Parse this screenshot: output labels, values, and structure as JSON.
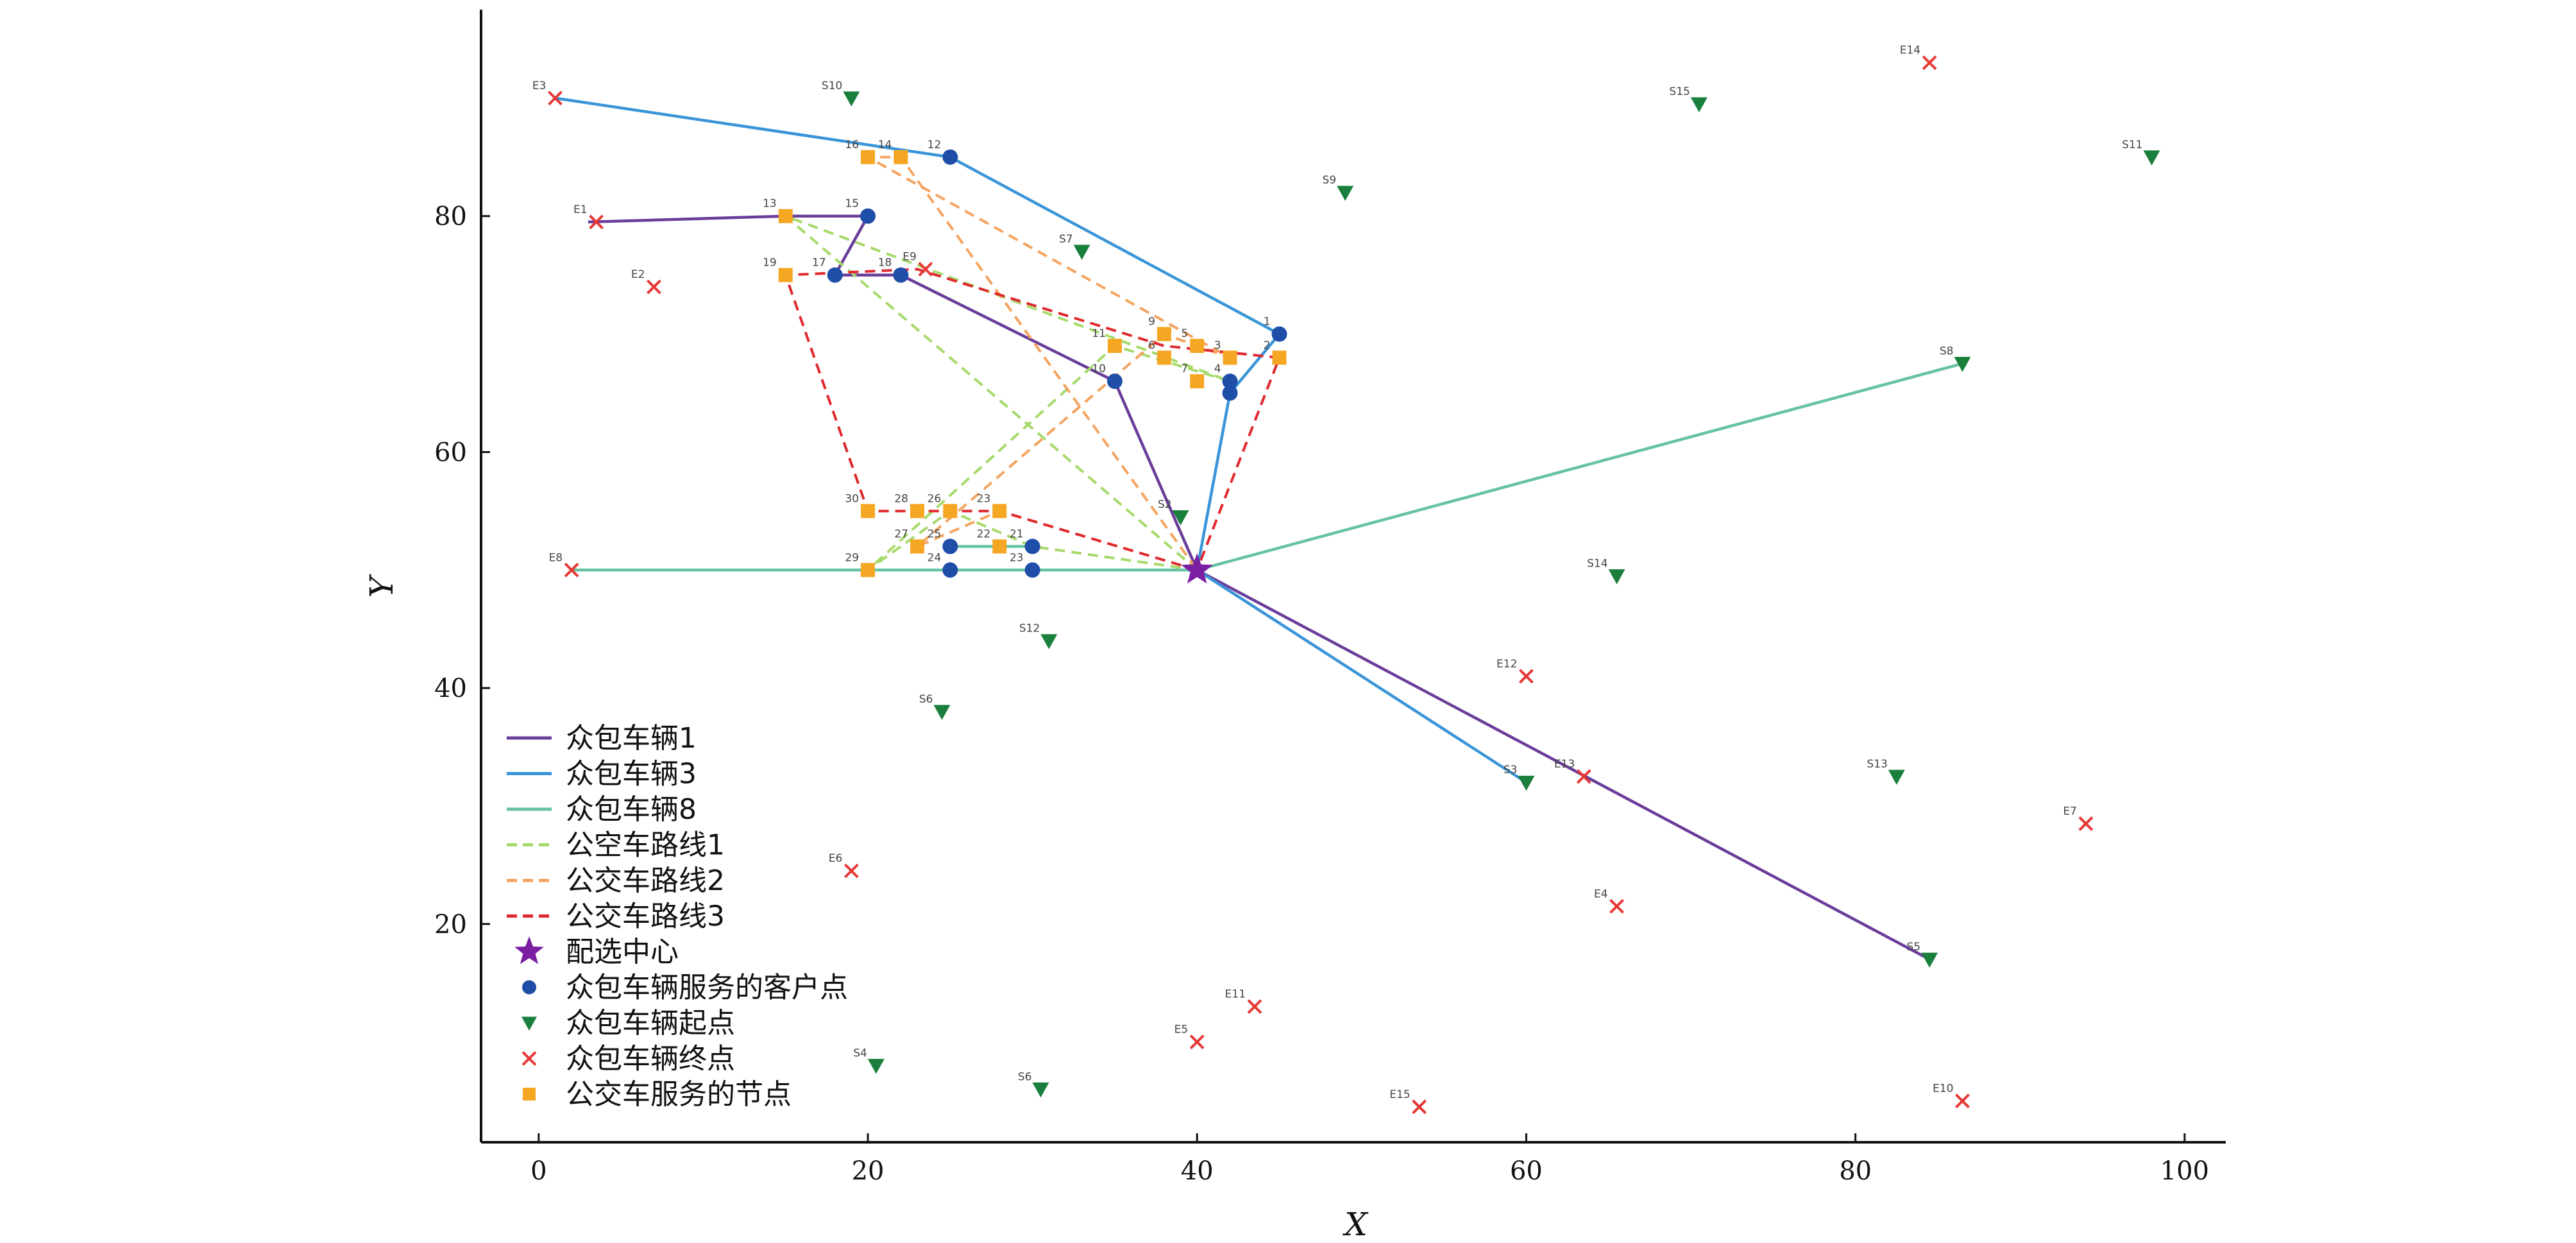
{
  "chart_data": {
    "type": "scatter",
    "xlabel": "X",
    "ylabel": "Y",
    "xlim": [
      -3.5,
      102.5
    ],
    "ylim": [
      1.5,
      97.5
    ],
    "xticks": [
      0,
      20,
      40,
      60,
      80,
      100
    ],
    "yticks": [
      20,
      40,
      60,
      80
    ],
    "grid": false,
    "legend_position": "bottom-left",
    "colors": {
      "vehicle1": "#6a3d9a",
      "vehicle3": "#3a94d8",
      "vehicle8": "#66c2a5",
      "bus1": "#a6d96a",
      "bus2": "#f4a460",
      "bus3": "#e0282e",
      "center": "#7b1fa2",
      "customer": "#1f4ea8",
      "start": "#1a7f3c",
      "end": "#e53935",
      "bus_node": "#f5a623"
    },
    "center": {
      "x": 40,
      "y": 50
    },
    "routes": [
      {
        "key": "vehicle1",
        "style": "solid",
        "points": [
          [
            40,
            50
          ],
          [
            35,
            66
          ],
          [
            22,
            75
          ],
          [
            18,
            75
          ],
          [
            20,
            80
          ],
          [
            15,
            80
          ],
          [
            3,
            79.5
          ]
        ]
      },
      {
        "key": "vehicle1",
        "style": "solid",
        "points": [
          [
            40,
            50
          ],
          [
            84.5,
            17
          ]
        ]
      },
      {
        "key": "vehicle3",
        "style": "solid",
        "points": [
          [
            40,
            50
          ],
          [
            42,
            65
          ],
          [
            45,
            70
          ],
          [
            25,
            85
          ],
          [
            1,
            90
          ]
        ]
      },
      {
        "key": "vehicle3",
        "style": "solid",
        "points": [
          [
            40,
            50
          ],
          [
            60,
            32
          ]
        ]
      },
      {
        "key": "vehicle8",
        "style": "solid",
        "points": [
          [
            40,
            50
          ],
          [
            86.5,
            67.5
          ]
        ]
      },
      {
        "key": "vehicle8",
        "style": "solid",
        "points": [
          [
            40,
            50
          ],
          [
            30,
            50
          ],
          [
            25,
            50
          ],
          [
            20,
            50
          ],
          [
            2,
            50
          ]
        ]
      },
      {
        "key": "vehicle8",
        "style": "solid",
        "points": [
          [
            30,
            52
          ],
          [
            25,
            52
          ]
        ]
      },
      {
        "key": "bus1",
        "style": "dashed",
        "points": [
          [
            40,
            50
          ],
          [
            30,
            52
          ],
          [
            25,
            55
          ],
          [
            20,
            50
          ],
          [
            35,
            69
          ],
          [
            42,
            66
          ],
          [
            15,
            80
          ],
          [
            40,
            50
          ]
        ]
      },
      {
        "key": "bus2",
        "style": "dashed",
        "points": [
          [
            40,
            50
          ],
          [
            28,
            55
          ],
          [
            23,
            52
          ],
          [
            38,
            70
          ],
          [
            42,
            68
          ],
          [
            20,
            85
          ],
          [
            22,
            85
          ],
          [
            40,
            50
          ]
        ]
      },
      {
        "key": "bus3",
        "style": "dashed",
        "points": [
          [
            40,
            50
          ],
          [
            28,
            55
          ],
          [
            20,
            55
          ],
          [
            15,
            75
          ],
          [
            23,
            75.5
          ],
          [
            38,
            69
          ],
          [
            45,
            68
          ],
          [
            40,
            50
          ]
        ]
      }
    ],
    "customers": [
      {
        "label": "1",
        "x": 45,
        "y": 70
      },
      {
        "label": "4",
        "x": 42,
        "y": 66
      },
      {
        "label": "",
        "x": 42,
        "y": 65
      },
      {
        "label": "10",
        "x": 35,
        "y": 66
      },
      {
        "label": "12",
        "x": 25,
        "y": 85
      },
      {
        "label": "15",
        "x": 20,
        "y": 80
      },
      {
        "label": "17",
        "x": 18,
        "y": 75
      },
      {
        "label": "18",
        "x": 22,
        "y": 75
      },
      {
        "label": "25",
        "x": 25,
        "y": 52
      },
      {
        "label": "21",
        "x": 30,
        "y": 52
      },
      {
        "label": "24",
        "x": 25,
        "y": 50
      },
      {
        "label": "23",
        "x": 30,
        "y": 50
      }
    ],
    "bus_nodes": [
      {
        "label": "16",
        "x": 20,
        "y": 85
      },
      {
        "label": "14",
        "x": 22,
        "y": 85
      },
      {
        "label": "13",
        "x": 15,
        "y": 80
      },
      {
        "label": "19",
        "x": 15,
        "y": 75
      },
      {
        "label": "11",
        "x": 35,
        "y": 69
      },
      {
        "label": "9",
        "x": 38,
        "y": 70
      },
      {
        "label": "6",
        "x": 38,
        "y": 68
      },
      {
        "label": "5",
        "x": 40,
        "y": 69
      },
      {
        "label": "3",
        "x": 42,
        "y": 68
      },
      {
        "label": "2",
        "x": 45,
        "y": 68
      },
      {
        "label": "7",
        "x": 40,
        "y": 66
      },
      {
        "label": "30",
        "x": 20,
        "y": 55
      },
      {
        "label": "28",
        "x": 23,
        "y": 55
      },
      {
        "label": "26",
        "x": 25,
        "y": 55
      },
      {
        "label": "23",
        "x": 28,
        "y": 55
      },
      {
        "label": "27",
        "x": 23,
        "y": 52
      },
      {
        "label": "22",
        "x": 28,
        "y": 52
      },
      {
        "label": "29",
        "x": 20,
        "y": 50
      }
    ],
    "starts": [
      {
        "label": "S10",
        "x": 19,
        "y": 90
      },
      {
        "label": "S15",
        "x": 70.5,
        "y": 89.5
      },
      {
        "label": "S11",
        "x": 98,
        "y": 85
      },
      {
        "label": "S9",
        "x": 49,
        "y": 82
      },
      {
        "label": "S7",
        "x": 33,
        "y": 77
      },
      {
        "label": "S8",
        "x": 86.5,
        "y": 67.5
      },
      {
        "label": "S2",
        "x": 39,
        "y": 54.5
      },
      {
        "label": "S14",
        "x": 65.5,
        "y": 49.5
      },
      {
        "label": "S12",
        "x": 31,
        "y": 44
      },
      {
        "label": "S6",
        "x": 24.5,
        "y": 38
      },
      {
        "label": "S3",
        "x": 60,
        "y": 32
      },
      {
        "label": "S13",
        "x": 82.5,
        "y": 32.5
      },
      {
        "label": "S5",
        "x": 84.5,
        "y": 17
      },
      {
        "label": "S4",
        "x": 20.5,
        "y": 8
      },
      {
        "label": "S6",
        "x": 30.5,
        "y": 6
      }
    ],
    "ends": [
      {
        "label": "E3",
        "x": 1,
        "y": 90
      },
      {
        "label": "E14",
        "x": 84.5,
        "y": 93
      },
      {
        "label": "E1",
        "x": 3.5,
        "y": 79.5
      },
      {
        "label": "E2",
        "x": 7,
        "y": 74
      },
      {
        "label": "E9",
        "x": 23.5,
        "y": 75.5
      },
      {
        "label": "E8",
        "x": 2,
        "y": 50
      },
      {
        "label": "E12",
        "x": 60,
        "y": 41
      },
      {
        "label": "E13",
        "x": 63.5,
        "y": 32.5
      },
      {
        "label": "E7",
        "x": 94,
        "y": 28.5
      },
      {
        "label": "E6",
        "x": 19,
        "y": 24.5
      },
      {
        "label": "E4",
        "x": 65.5,
        "y": 21.5
      },
      {
        "label": "E11",
        "x": 43.5,
        "y": 13
      },
      {
        "label": "E5",
        "x": 40,
        "y": 10
      },
      {
        "label": "E15",
        "x": 53.5,
        "y": 4.5
      },
      {
        "label": "E10",
        "x": 86.5,
        "y": 5
      }
    ],
    "legend": [
      {
        "key": "vehicle1",
        "kind": "line",
        "label": "众包车辆1"
      },
      {
        "key": "vehicle3",
        "kind": "line",
        "label": "众包车辆3"
      },
      {
        "key": "vehicle8",
        "kind": "line",
        "label": "众包车辆8"
      },
      {
        "key": "bus1",
        "kind": "dash",
        "label": "公空车路线1"
      },
      {
        "key": "bus2",
        "kind": "dash",
        "label": "公交车路线2"
      },
      {
        "key": "bus3",
        "kind": "dash",
        "label": "公交车路线3"
      },
      {
        "key": "center",
        "kind": "star",
        "label": "配选中心"
      },
      {
        "key": "customer",
        "kind": "circle",
        "label": "众包车辆服务的客户点"
      },
      {
        "key": "start",
        "kind": "triangle",
        "label": "众包车辆起点"
      },
      {
        "key": "end",
        "kind": "cross",
        "label": "众包车辆终点"
      },
      {
        "key": "bus_node",
        "kind": "square",
        "label": "公交车服务的节点"
      }
    ]
  }
}
